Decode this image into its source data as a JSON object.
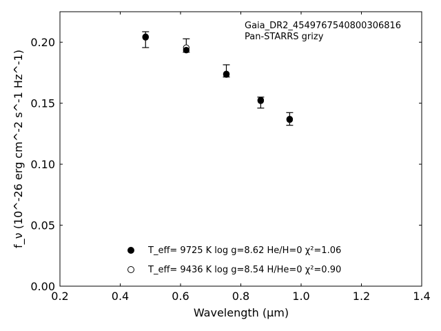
{
  "chart_data": {
    "type": "scatter",
    "annotation_lines": [
      "Gaia_DR2_4549767540800306816",
      "Pan-STARRS grizy"
    ],
    "xlabel": "Wavelength (μm)",
    "ylabel": "f_ν (10^-26 erg cm^-2 s^-1 Hz^-1)",
    "xlim": [
      0.2,
      1.4
    ],
    "ylim": [
      0.0,
      0.225
    ],
    "xticks": [
      0.2,
      0.4,
      0.6,
      0.8,
      1.0,
      1.2,
      1.4
    ],
    "xtick_labels": [
      "0.2",
      "0.4",
      "0.6",
      "0.8",
      "1.0",
      "1.2",
      "1.4"
    ],
    "yticks": [
      0.0,
      0.05,
      0.1,
      0.15,
      0.2
    ],
    "ytick_labels": [
      "0.00",
      "0.05",
      "0.10",
      "0.15",
      "0.20"
    ],
    "grid": false,
    "legend_placement": "lower-center",
    "observed": {
      "x": [
        0.484,
        0.619,
        0.752,
        0.866,
        0.962
      ],
      "y": [
        0.2021,
        0.1973,
        0.1765,
        0.1505,
        0.1371
      ],
      "yerr": [
        0.0065,
        0.0055,
        0.005,
        0.0045,
        0.0052
      ]
    },
    "series": [
      {
        "marker": "filled-circle",
        "legend_label": "T_eff=  9725 K  log g=8.62  He/H=0  χ²=1.06",
        "x": [
          0.484,
          0.619,
          0.752,
          0.866,
          0.962
        ],
        "y": [
          0.2045,
          0.1935,
          0.1735,
          0.1525,
          0.137
        ]
      },
      {
        "marker": "open-circle",
        "legend_label": "T_eff=  9436 K  log g=8.54  H/He=0  χ²=0.90",
        "x": [
          0.484,
          0.619,
          0.752,
          0.866,
          0.962
        ],
        "y": [
          0.204,
          0.1955,
          0.174,
          0.152,
          0.1365
        ]
      }
    ]
  }
}
